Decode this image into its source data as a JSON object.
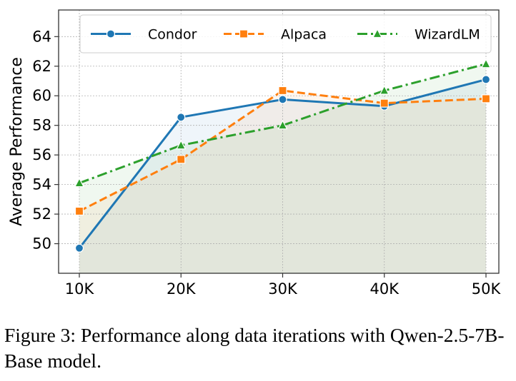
{
  "chart_data": {
    "type": "line",
    "title": "",
    "xlabel": "",
    "ylabel": "Average Performance",
    "categories": [
      "10K",
      "20K",
      "30K",
      "40K",
      "50K"
    ],
    "ylim": [
      48,
      65.8
    ],
    "yticks": [
      50,
      52,
      54,
      56,
      58,
      60,
      62,
      64
    ],
    "grid": true,
    "grid_style": "dotted",
    "legend_position": "top",
    "filled_area_under_lines": true,
    "series": [
      {
        "name": "Condor",
        "values": [
          49.7,
          58.55,
          59.75,
          59.3,
          61.1
        ],
        "color": "#1f77b4",
        "line_style": "solid",
        "marker": "circle"
      },
      {
        "name": "Alpaca",
        "values": [
          52.2,
          55.7,
          60.35,
          59.5,
          59.8
        ],
        "color": "#ff7f0e",
        "line_style": "dashed",
        "marker": "square"
      },
      {
        "name": "WizardLM",
        "values": [
          54.1,
          56.65,
          58.0,
          60.35,
          62.15
        ],
        "color": "#2ca02c",
        "line_style": "dashdot",
        "marker": "triangle"
      }
    ]
  },
  "caption": "Figure 3: Performance along data iterations with Qwen-2.5-7B-Base model."
}
